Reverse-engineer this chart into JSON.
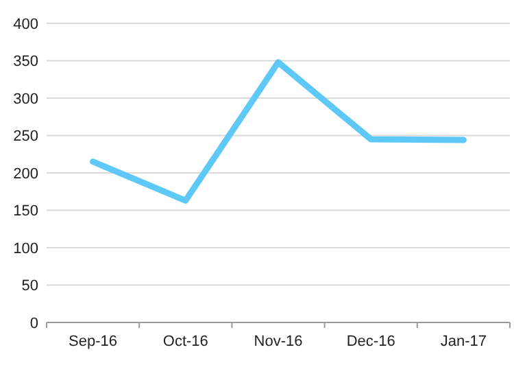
{
  "chart_data": {
    "type": "line",
    "categories": [
      "Sep-16",
      "Oct-16",
      "Nov-16",
      "Dec-16",
      "Jan-17"
    ],
    "series": [
      {
        "color": "#5ec8f7",
        "values": [
          215,
          163,
          348,
          245,
          244
        ]
      }
    ],
    "ylim": [
      0,
      400
    ],
    "yticks": [
      0,
      50,
      100,
      150,
      200,
      250,
      300,
      350,
      400
    ],
    "grid": "y",
    "marker": "none",
    "line_style": "solid"
  }
}
